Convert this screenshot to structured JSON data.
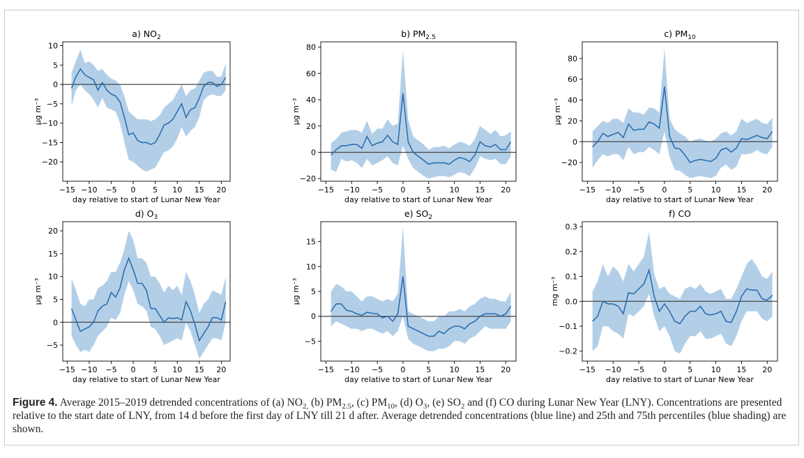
{
  "chart_data": [
    {
      "type": "line",
      "title": "a) NO₂",
      "xlabel": "day relative to start of Lunar New Year",
      "ylabel": "µg m⁻³",
      "xlim": [
        -16,
        22
      ],
      "ylim": [
        -25,
        11
      ],
      "xticks": [
        -15,
        -10,
        -5,
        0,
        5,
        10,
        15,
        20
      ],
      "yticks": [
        10,
        5,
        0,
        -5,
        -10,
        -15,
        -20
      ],
      "x": [
        -14,
        -13,
        -12,
        -11,
        -10,
        -9,
        -8,
        -7,
        -6,
        -5,
        -4,
        -3,
        -2,
        -1,
        0,
        1,
        2,
        3,
        4,
        5,
        6,
        7,
        8,
        9,
        10,
        11,
        12,
        13,
        14,
        15,
        16,
        17,
        18,
        19,
        20,
        21
      ],
      "series": [
        {
          "values": [
            -1,
            2,
            4,
            2.5,
            1.8,
            1.2,
            -1.5,
            0.5,
            -1.5,
            -2.5,
            -3,
            -4.5,
            -8.5,
            -13,
            -12.5,
            -14.5,
            -15,
            -15,
            -15.5,
            -15,
            -13,
            -10.5,
            -10,
            -9,
            -7,
            -5,
            -8.5,
            -6.5,
            -6,
            -3.5,
            -0.5,
            0.5,
            0.5,
            -0.5,
            0,
            1.8
          ]
        },
        {
          "lower": [
            -5.5,
            -1.5,
            0,
            -1.5,
            -2.5,
            -4,
            -6,
            -3.5,
            -6,
            -6.5,
            -7,
            -10,
            -15,
            -19.5,
            -20,
            -21,
            -22,
            -22.5,
            -22,
            -21.5,
            -19.5,
            -17.5,
            -17,
            -16,
            -14,
            -11,
            -13.5,
            -12,
            -11,
            -8.5,
            -4,
            -3,
            -2.5,
            -3,
            -3,
            -1.5
          ],
          "upper": [
            3,
            6,
            9,
            5.5,
            6,
            5,
            3.5,
            4,
            2.5,
            1.5,
            1,
            0,
            -3,
            -7,
            -8,
            -9,
            -9,
            -9,
            -9.5,
            -9,
            -8,
            -6,
            -5,
            -4,
            -2,
            0,
            -3,
            -1.5,
            -1,
            1,
            3,
            3.5,
            3.5,
            2,
            2,
            5.5
          ]
        }
      ]
    },
    {
      "type": "line",
      "title": "b) PM2.5",
      "xlabel": "day relative to start of Lunar New Year",
      "ylabel": "µg m⁻³",
      "xlim": [
        -16,
        22
      ],
      "ylim": [
        -22,
        84
      ],
      "xticks": [
        -15,
        -10,
        -5,
        0,
        5,
        10,
        15,
        20
      ],
      "yticks": [
        80,
        60,
        40,
        20,
        0,
        -20
      ],
      "x": [
        -14,
        -13,
        -12,
        -11,
        -10,
        -9,
        -8,
        -7,
        -6,
        -5,
        -4,
        -3,
        -2,
        -1,
        0,
        1,
        2,
        3,
        4,
        5,
        6,
        7,
        8,
        9,
        10,
        11,
        12,
        13,
        14,
        15,
        16,
        17,
        18,
        19,
        20,
        21
      ],
      "series": [
        {
          "values": [
            -2,
            2,
            5,
            5,
            6,
            6,
            3,
            12,
            5,
            7,
            8,
            13,
            8,
            6,
            45,
            8,
            0,
            -3,
            -6,
            -9,
            -8,
            -8,
            -8,
            -9,
            -6,
            -4,
            -5,
            -7,
            -2,
            8,
            5,
            4,
            6,
            2,
            2,
            8
          ]
        },
        {
          "lower": [
            -13,
            -15,
            -5,
            -7,
            -6,
            -8,
            -12,
            -5,
            -10,
            -8,
            -6,
            -3,
            -8,
            -10,
            5,
            -5,
            -12,
            -15,
            -18,
            -20,
            -19,
            -18,
            -18,
            -19,
            -17,
            -15,
            -16,
            -18,
            -12,
            -3,
            -5,
            -6,
            -5,
            -9,
            -9,
            -3
          ],
          "upper": [
            7,
            10,
            15,
            16,
            17,
            17,
            15,
            24,
            14,
            18,
            18,
            25,
            20,
            22,
            78,
            25,
            12,
            9,
            6,
            2,
            4,
            4,
            5,
            3,
            6,
            8,
            7,
            5,
            10,
            20,
            17,
            14,
            17,
            12,
            13,
            16
          ]
        }
      ]
    },
    {
      "type": "line",
      "title": "c) PM10",
      "xlabel": "day relative to start of Lunar New Year",
      "ylabel": "µg m⁻³",
      "xlim": [
        -16,
        22
      ],
      "ylim": [
        -38,
        96
      ],
      "xticks": [
        -15,
        -10,
        -5,
        0,
        5,
        10,
        15,
        20
      ],
      "yticks": [
        80,
        60,
        40,
        20,
        0,
        -20
      ],
      "x": [
        -14,
        -13,
        -12,
        -11,
        -10,
        -9,
        -8,
        -7,
        -6,
        -5,
        -4,
        -3,
        -2,
        -1,
        0,
        1,
        2,
        3,
        4,
        5,
        6,
        7,
        8,
        9,
        10,
        11,
        12,
        13,
        14,
        15,
        16,
        17,
        18,
        19,
        20,
        21
      ],
      "series": [
        {
          "values": [
            -5,
            0,
            8,
            5,
            7,
            9,
            4,
            17,
            11,
            12,
            12,
            19,
            17,
            13,
            53,
            5,
            -6,
            -7,
            -13,
            -20,
            -18,
            -17,
            -18,
            -19,
            -16,
            -8,
            -6,
            -10,
            -6,
            3,
            2,
            4,
            6,
            4,
            3,
            10
          ]
        },
        {
          "lower": [
            -25,
            -18,
            -12,
            -14,
            -12,
            -12,
            -18,
            -5,
            -12,
            -10,
            -10,
            -5,
            -8,
            -12,
            10,
            -15,
            -27,
            -28,
            -32,
            -35,
            -34,
            -33,
            -34,
            -35,
            -33,
            -25,
            -22,
            -27,
            -24,
            -12,
            -12,
            -11,
            -8,
            -11,
            -12,
            -5
          ]
        },
        {
          "upper": [
            10,
            15,
            20,
            18,
            22,
            22,
            18,
            32,
            28,
            28,
            26,
            33,
            32,
            28,
            90,
            22,
            12,
            8,
            5,
            0,
            2,
            3,
            1,
            0,
            3,
            8,
            10,
            6,
            10,
            22,
            18,
            20,
            22,
            18,
            17,
            23
          ]
        }
      ]
    },
    {
      "type": "line",
      "title": "d) O₃",
      "xlabel": "day relative to start of Lunar New Year",
      "ylabel": "µg m⁻³",
      "xlim": [
        -16,
        22
      ],
      "ylim": [
        -8.5,
        22
      ],
      "xticks": [
        -15,
        -10,
        -5,
        0,
        5,
        10,
        15,
        20
      ],
      "yticks": [
        20,
        15,
        10,
        5,
        0,
        -5
      ],
      "x": [
        -14,
        -13,
        -12,
        -11,
        -10,
        -9,
        -8,
        -7,
        -6,
        -5,
        -4,
        -3,
        -2,
        -1,
        0,
        1,
        2,
        3,
        4,
        5,
        6,
        7,
        8,
        9,
        10,
        11,
        12,
        13,
        14,
        15,
        16,
        17,
        18,
        19,
        20,
        21
      ],
      "series": [
        {
          "values": [
            3,
            0.5,
            -2,
            -1.5,
            -1,
            0,
            2.5,
            3.5,
            4,
            6.5,
            5.5,
            7.5,
            11.5,
            14,
            11.5,
            8.5,
            8.5,
            7,
            3,
            3,
            1.5,
            0,
            1,
            0.8,
            1,
            0.5,
            4.5,
            2.5,
            -0.5,
            -4,
            -2.5,
            -1,
            1,
            1,
            0.5,
            4.5
          ]
        },
        {
          "lower": [
            -3,
            -5,
            -6.5,
            -6,
            -6.5,
            -5,
            -3,
            -2,
            -1,
            1,
            0.5,
            2,
            6,
            9,
            7,
            4,
            3.5,
            2.5,
            -1,
            -1.5,
            -3,
            -5,
            -4.5,
            -4,
            -3.5,
            -4,
            0,
            -2,
            -5,
            -8,
            -6.5,
            -5,
            -3.5,
            -3.5,
            -4,
            0
          ]
        },
        {
          "upper": [
            9.5,
            7,
            4,
            3.5,
            5,
            5,
            7.5,
            8,
            9,
            11,
            11,
            13,
            16,
            20,
            18,
            14,
            14,
            13,
            10,
            10,
            8.5,
            6.5,
            8,
            7,
            8,
            6,
            11,
            9,
            6,
            2,
            4,
            5,
            7,
            6.5,
            6,
            10
          ]
        }
      ]
    },
    {
      "type": "line",
      "title": "e) SO₂",
      "xlabel": "day relative to start of Lunar New Year",
      "ylabel": "µg m⁻³",
      "xlim": [
        -16,
        22
      ],
      "ylim": [
        -9,
        19
      ],
      "xticks": [
        -15,
        -10,
        -5,
        0,
        5,
        10,
        15,
        20
      ],
      "yticks": [
        15,
        10,
        5,
        0,
        -5
      ],
      "x": [
        -14,
        -13,
        -12,
        -11,
        -10,
        -9,
        -8,
        -7,
        -6,
        -5,
        -4,
        -3,
        -2,
        -1,
        0,
        1,
        2,
        3,
        4,
        5,
        6,
        7,
        8,
        9,
        10,
        11,
        12,
        13,
        14,
        15,
        16,
        17,
        18,
        19,
        20,
        21
      ],
      "series": [
        {
          "values": [
            1,
            2.5,
            2.5,
            1.2,
            1,
            0.5,
            0.2,
            0.8,
            0.6,
            0.5,
            -0.3,
            0,
            -1,
            0.5,
            8,
            -2,
            -2.5,
            -3,
            -3.5,
            -4,
            -4,
            -3,
            -3.5,
            -2.5,
            -2,
            -2,
            -2.5,
            -1.5,
            -1,
            0,
            0.5,
            0.5,
            0.5,
            0,
            0.5,
            2
          ]
        },
        {
          "lower": [
            -2,
            -1,
            -1.5,
            -2,
            -2.5,
            -2.5,
            -3,
            -2.5,
            -2.5,
            -3,
            -3.5,
            -3,
            -4,
            -3,
            0,
            -4.5,
            -5.5,
            -6,
            -6.5,
            -7,
            -7,
            -6.5,
            -6.5,
            -6,
            -5,
            -5,
            -5.5,
            -4.5,
            -4,
            -3,
            -2,
            -2.5,
            -2.5,
            -2.5,
            -2.5,
            -1
          ]
        },
        {
          "upper": [
            5,
            6.5,
            6,
            5,
            5,
            4,
            3,
            4,
            4,
            3.5,
            3,
            3.5,
            3,
            4.5,
            18,
            1,
            0.5,
            0,
            -0.5,
            -1,
            -1,
            0,
            0,
            1,
            1,
            1.5,
            1,
            2,
            2.5,
            3.5,
            4,
            3.5,
            3.5,
            3,
            3,
            5
          ]
        }
      ]
    },
    {
      "type": "line",
      "title": "f) CO",
      "xlabel": "day relative to start of Lunar New Year",
      "ylabel": "mg m⁻³",
      "xlim": [
        -16,
        22
      ],
      "ylim": [
        -0.24,
        0.32
      ],
      "xticks": [
        -15,
        -10,
        -5,
        0,
        5,
        10,
        15,
        20
      ],
      "yticks": [
        0.3,
        0.2,
        0.1,
        0.0,
        -0.1,
        -0.2
      ],
      "yticklabels": [
        "0.3",
        "0.2",
        "0.1",
        "0.0",
        "−0.1",
        "−0.2"
      ],
      "x": [
        -14,
        -13,
        -12,
        -11,
        -10,
        -9,
        -8,
        -7,
        -6,
        -5,
        -4,
        -3,
        -2,
        -1,
        0,
        1,
        2,
        3,
        4,
        5,
        6,
        7,
        8,
        9,
        10,
        11,
        12,
        13,
        14,
        15,
        16,
        17,
        18,
        19,
        20,
        21
      ],
      "series": [
        {
          "values": [
            -0.08,
            -0.06,
            0,
            -0.01,
            -0.01,
            -0.02,
            -0.05,
            0.035,
            0.03,
            0.05,
            0.07,
            0.125,
            0.02,
            -0.04,
            -0.01,
            -0.04,
            -0.08,
            -0.09,
            -0.06,
            -0.04,
            -0.04,
            -0.02,
            -0.05,
            -0.055,
            -0.05,
            -0.04,
            -0.08,
            -0.085,
            -0.04,
            0.02,
            0.05,
            0.045,
            0.045,
            0.01,
            0.005,
            0.025
          ]
        },
        {
          "lower": [
            -0.2,
            -0.18,
            -0.1,
            -0.1,
            -0.12,
            -0.13,
            -0.15,
            -0.05,
            -0.06,
            -0.04,
            -0.02,
            0.03,
            -0.06,
            -0.12,
            -0.1,
            -0.14,
            -0.2,
            -0.21,
            -0.17,
            -0.14,
            -0.14,
            -0.12,
            -0.15,
            -0.15,
            -0.14,
            -0.13,
            -0.17,
            -0.18,
            -0.14,
            -0.08,
            -0.04,
            -0.04,
            -0.04,
            -0.07,
            -0.08,
            -0.06
          ]
        },
        {
          "upper": [
            0.04,
            0.08,
            0.15,
            0.1,
            0.14,
            0.12,
            0.08,
            0.15,
            0.12,
            0.15,
            0.18,
            0.28,
            0.11,
            0.05,
            0.06,
            0.03,
            0.02,
            0.01,
            0.05,
            0.06,
            0.05,
            0.07,
            0.04,
            0.03,
            0.04,
            0.05,
            0.01,
            0.01,
            0.05,
            0.1,
            0.15,
            0.17,
            0.14,
            0.1,
            0.09,
            0.12
          ]
        }
      ]
    }
  ],
  "caption": {
    "label": "Figure 4.",
    "parts": [
      {
        "t": " Average 2015–2019 detrended concentrations of (a) NO"
      },
      {
        "t": "2,",
        "sub": true
      },
      {
        "t": " (b) PM"
      },
      {
        "t": "2.5",
        "sub": true
      },
      {
        "t": ", (c) PM"
      },
      {
        "t": "10",
        "sub": true
      },
      {
        "t": ", (d) O"
      },
      {
        "t": "3",
        "sub": true
      },
      {
        "t": ", (e) SO"
      },
      {
        "t": "2",
        "sub": true
      },
      {
        "t": " and (f) CO during Lunar New Year (LNY). Concentrations are presented relative to the start date of LNY, from 14 d before the first day of LNY till 21 d after. Average detrended concentrations (blue line) and 25th and 75th percentiles (blue shading) are shown."
      }
    ]
  },
  "colors": {
    "line": "#2c6fae",
    "band": "#b3cfe8",
    "zero_line": "#444444",
    "axes": "#000000"
  }
}
